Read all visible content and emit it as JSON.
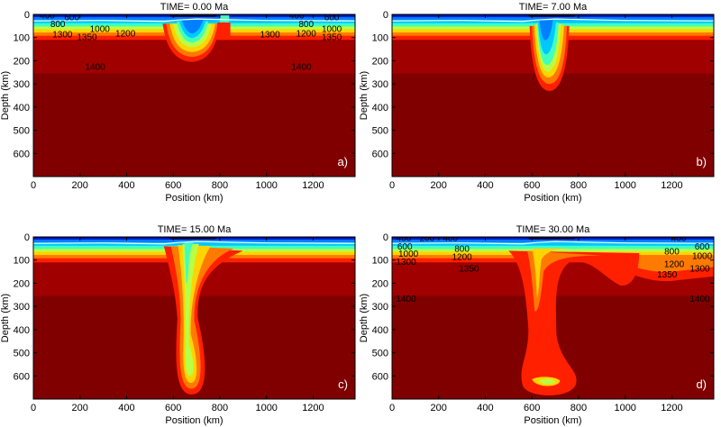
{
  "figure": {
    "background": "#ffffff"
  },
  "palette": {
    "mantle_deep": "#800000",
    "mantle": "#a00000",
    "c1350": "#d40000",
    "c1300": "#ff2000",
    "c1200": "#ff7a00",
    "c1000": "#ffd400",
    "c900": "#b8ff48",
    "c800": "#40ffbf",
    "c700": "#00c8ff",
    "c600": "#0080ff",
    "c400": "#0020c8",
    "c200": "#000080",
    "surface_line": "#ffffff",
    "axis": "#000000"
  },
  "chart_data": [
    {
      "type": "heatmap",
      "panel": "a)",
      "title": "TIME=   0.00 Ma",
      "xlabel": "Position (km)",
      "ylabel": "Depth (km)",
      "xlim": [
        0,
        1380
      ],
      "ylim": [
        0,
        700
      ],
      "y_inverted": true,
      "xticks": [
        "0",
        "200",
        "400",
        "600",
        "800",
        "1000",
        "1200"
      ],
      "yticks": [
        "0",
        "100",
        "200",
        "300",
        "400",
        "500",
        "600"
      ],
      "contour_labels": [
        {
          "text": "400",
          "x": 60,
          "y": 18
        },
        {
          "text": "600",
          "x": 165,
          "y": 25
        },
        {
          "text": "800",
          "x": 105,
          "y": 55
        },
        {
          "text": "1000",
          "x": 285,
          "y": 75
        },
        {
          "text": "1200",
          "x": 395,
          "y": 95
        },
        {
          "text": "1300",
          "x": 125,
          "y": 100
        },
        {
          "text": "1350",
          "x": 230,
          "y": 110
        },
        {
          "text": "1400",
          "x": 265,
          "y": 240
        },
        {
          "text": "400",
          "x": 1130,
          "y": 18
        },
        {
          "text": "600",
          "x": 1280,
          "y": 25
        },
        {
          "text": "800",
          "x": 1170,
          "y": 55
        },
        {
          "text": "1000",
          "x": 1280,
          "y": 75
        },
        {
          "text": "1200",
          "x": 1170,
          "y": 95
        },
        {
          "text": "1300",
          "x": 1015,
          "y": 100
        },
        {
          "text": "1350",
          "x": 1280,
          "y": 110
        },
        {
          "text": "1400",
          "x": 1150,
          "y": 240
        }
      ]
    },
    {
      "type": "heatmap",
      "panel": "b)",
      "title": "TIME=   7.00 Ma",
      "xlabel": "Position (km)",
      "ylabel": "Depth (km)",
      "xlim": [
        0,
        1380
      ],
      "ylim": [
        0,
        700
      ],
      "y_inverted": true,
      "xticks": [
        "0",
        "200",
        "400",
        "600",
        "800",
        "1000",
        "1200"
      ],
      "yticks": [
        "0",
        "100",
        "200",
        "300",
        "400",
        "500",
        "600"
      ],
      "contour_labels": []
    },
    {
      "type": "heatmap",
      "panel": "c)",
      "title": "TIME=   15.00 Ma",
      "xlabel": "Position (km)",
      "ylabel": "Depth (km)",
      "xlim": [
        0,
        1380
      ],
      "ylim": [
        0,
        700
      ],
      "y_inverted": true,
      "xticks": [
        "0",
        "200",
        "400",
        "600",
        "800",
        "1000",
        "1200"
      ],
      "yticks": [
        "0",
        "100",
        "200",
        "300",
        "400",
        "500",
        "600"
      ],
      "contour_labels": []
    },
    {
      "type": "heatmap",
      "panel": "d)",
      "title": "TIME=   30.00 Ma",
      "xlabel": "Position (km)",
      "ylabel": "Depth (km)",
      "xlim": [
        0,
        1380
      ],
      "ylim": [
        0,
        700
      ],
      "y_inverted": true,
      "xticks": [
        "0",
        "200",
        "400",
        "600",
        "800",
        "1000",
        "1200"
      ],
      "yticks": [
        "0",
        "100",
        "200",
        "300",
        "400",
        "500",
        "600"
      ],
      "contour_labels": [
        {
          "text": "400",
          "x": 50,
          "y": 18
        },
        {
          "text": "200",
          "x": 150,
          "y": 18
        },
        {
          "text": "400",
          "x": 250,
          "y": 18
        },
        {
          "text": "600",
          "x": 55,
          "y": 55
        },
        {
          "text": "800",
          "x": 300,
          "y": 65
        },
        {
          "text": "1000",
          "x": 70,
          "y": 85
        },
        {
          "text": "1200",
          "x": 300,
          "y": 100
        },
        {
          "text": "1300",
          "x": 60,
          "y": 120
        },
        {
          "text": "1350",
          "x": 330,
          "y": 150
        },
        {
          "text": "1400",
          "x": 60,
          "y": 280
        },
        {
          "text": "400",
          "x": 1230,
          "y": 18
        },
        {
          "text": "600",
          "x": 1330,
          "y": 55
        },
        {
          "text": "800",
          "x": 1200,
          "y": 75
        },
        {
          "text": "1000",
          "x": 1330,
          "y": 95
        },
        {
          "text": "1200",
          "x": 1210,
          "y": 130
        },
        {
          "text": "1300",
          "x": 1320,
          "y": 150
        },
        {
          "text": "1350",
          "x": 1180,
          "y": 175
        },
        {
          "text": "1400",
          "x": 1320,
          "y": 280
        }
      ]
    }
  ]
}
